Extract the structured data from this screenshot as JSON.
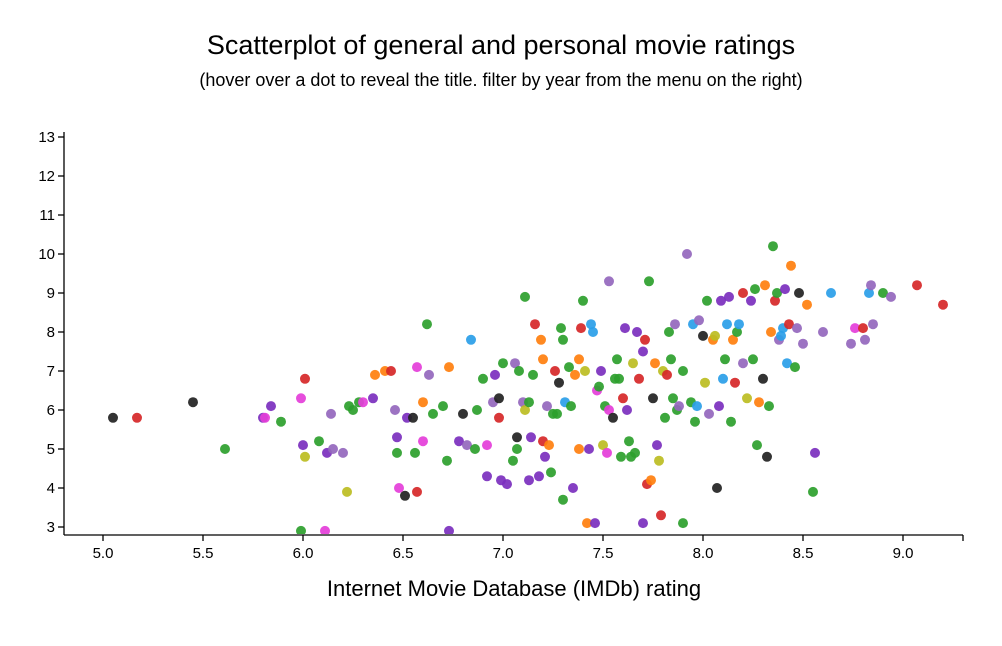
{
  "chart_data": {
    "type": "scatter",
    "title": "Scatterplot of general and personal movie ratings",
    "subtitle": "(hover over a dot to reveal the title. filter by year from the menu on the right)",
    "xlabel": "Internet Movie Database (IMDb) rating",
    "ylabel": "",
    "xlim": [
      4.8,
      9.3
    ],
    "ylim": [
      2.9,
      13.0
    ],
    "xticks": [
      "5.0",
      "5.5",
      "6.0",
      "6.5",
      "7.0",
      "7.5",
      "8.0",
      "8.5",
      "9.0"
    ],
    "yticks": [
      "3",
      "4",
      "5",
      "6",
      "7",
      "8",
      "9",
      "10",
      "11",
      "12",
      "13"
    ],
    "colors": [
      "#2ca02c",
      "#2ca02c",
      "#2ca02c",
      "#7b2fbe",
      "#9467bd",
      "#e43ed9",
      "#2a9ee8",
      "#ff7f0e",
      "#d62728",
      "#222222",
      "#bcbd22",
      "#17becf"
    ],
    "points": [
      [
        5.05,
        5.8,
        9
      ],
      [
        5.17,
        5.8,
        8
      ],
      [
        5.45,
        6.2,
        9
      ],
      [
        5.61,
        5.0,
        0
      ],
      [
        5.8,
        5.8,
        3
      ],
      [
        5.81,
        5.8,
        5
      ],
      [
        5.84,
        6.1,
        3
      ],
      [
        5.89,
        5.7,
        0
      ],
      [
        5.99,
        6.3,
        5
      ],
      [
        6.0,
        5.1,
        3
      ],
      [
        6.01,
        4.8,
        10
      ],
      [
        6.01,
        6.8,
        8
      ],
      [
        6.08,
        5.2,
        0
      ],
      [
        6.12,
        4.9,
        3
      ],
      [
        6.15,
        5.0,
        4
      ],
      [
        6.14,
        5.9,
        4
      ],
      [
        6.2,
        4.9,
        4
      ],
      [
        6.22,
        3.9,
        10
      ],
      [
        6.23,
        6.1,
        0
      ],
      [
        6.25,
        6.0,
        0
      ],
      [
        6.28,
        6.2,
        0
      ],
      [
        6.3,
        6.2,
        5
      ],
      [
        6.35,
        6.3,
        3
      ],
      [
        6.36,
        6.9,
        7
      ],
      [
        6.41,
        7.0,
        7
      ],
      [
        6.44,
        7.0,
        8
      ],
      [
        6.46,
        6.0,
        4
      ],
      [
        6.47,
        4.9,
        0
      ],
      [
        6.47,
        5.3,
        3
      ],
      [
        6.48,
        4.0,
        5
      ],
      [
        6.51,
        3.8,
        9
      ],
      [
        6.52,
        5.8,
        3
      ],
      [
        6.55,
        5.8,
        9
      ],
      [
        6.56,
        4.9,
        0
      ],
      [
        6.57,
        3.9,
        8
      ],
      [
        6.57,
        7.1,
        5
      ],
      [
        6.6,
        6.2,
        7
      ],
      [
        6.6,
        5.2,
        5
      ],
      [
        6.62,
        8.2,
        0
      ],
      [
        6.63,
        6.9,
        4
      ],
      [
        6.65,
        5.9,
        0
      ],
      [
        6.7,
        6.1,
        0
      ],
      [
        6.72,
        4.7,
        0
      ],
      [
        6.73,
        7.1,
        7
      ],
      [
        6.78,
        5.2,
        3
      ],
      [
        6.8,
        5.9,
        9
      ],
      [
        6.82,
        5.1,
        4
      ],
      [
        6.84,
        7.8,
        6
      ],
      [
        6.86,
        5.0,
        0
      ],
      [
        6.87,
        6.0,
        0
      ],
      [
        6.9,
        6.8,
        0
      ],
      [
        6.92,
        4.3,
        3
      ],
      [
        6.92,
        5.1,
        5
      ],
      [
        6.95,
        6.2,
        4
      ],
      [
        6.96,
        6.9,
        3
      ],
      [
        6.98,
        5.8,
        8
      ],
      [
        6.98,
        6.3,
        9
      ],
      [
        6.99,
        4.2,
        3
      ],
      [
        7.0,
        7.2,
        0
      ],
      [
        7.02,
        4.1,
        3
      ],
      [
        7.05,
        4.7,
        0
      ],
      [
        7.06,
        7.2,
        4
      ],
      [
        7.07,
        5.0,
        0
      ],
      [
        7.07,
        5.3,
        9
      ],
      [
        7.08,
        7.0,
        0
      ],
      [
        7.1,
        6.2,
        4
      ],
      [
        7.11,
        8.9,
        0
      ],
      [
        7.11,
        6.0,
        10
      ],
      [
        7.13,
        4.2,
        3
      ],
      [
        7.13,
        6.2,
        0
      ],
      [
        7.14,
        5.3,
        3
      ],
      [
        7.15,
        6.9,
        0
      ],
      [
        7.16,
        8.2,
        8
      ],
      [
        7.18,
        4.3,
        3
      ],
      [
        7.19,
        7.8,
        7
      ],
      [
        7.2,
        7.3,
        7
      ],
      [
        7.2,
        5.2,
        8
      ],
      [
        7.21,
        4.8,
        3
      ],
      [
        7.22,
        6.1,
        4
      ],
      [
        7.23,
        5.1,
        7
      ],
      [
        7.24,
        4.4,
        0
      ],
      [
        7.25,
        5.9,
        0
      ],
      [
        7.26,
        7.0,
        8
      ],
      [
        7.27,
        5.9,
        0
      ],
      [
        7.28,
        6.7,
        9
      ],
      [
        7.29,
        8.1,
        0
      ],
      [
        7.3,
        7.8,
        0
      ],
      [
        7.3,
        3.7,
        0
      ],
      [
        7.31,
        6.2,
        6
      ],
      [
        7.33,
        7.1,
        0
      ],
      [
        7.34,
        6.1,
        0
      ],
      [
        7.35,
        4.0,
        3
      ],
      [
        7.36,
        6.9,
        7
      ],
      [
        7.38,
        5.0,
        7
      ],
      [
        7.38,
        7.3,
        7
      ],
      [
        7.39,
        8.1,
        8
      ],
      [
        7.4,
        8.8,
        0
      ],
      [
        7.41,
        7.0,
        10
      ],
      [
        7.42,
        3.1,
        7
      ],
      [
        7.43,
        5.0,
        3
      ],
      [
        7.44,
        8.2,
        6
      ],
      [
        7.45,
        8.0,
        6
      ],
      [
        7.46,
        3.1,
        3
      ],
      [
        7.47,
        6.5,
        5
      ],
      [
        7.48,
        6.6,
        0
      ],
      [
        7.49,
        7.0,
        3
      ],
      [
        7.5,
        5.1,
        10
      ],
      [
        7.51,
        6.1,
        0
      ],
      [
        7.52,
        4.9,
        5
      ],
      [
        7.53,
        6.0,
        5
      ],
      [
        7.53,
        9.3,
        4
      ],
      [
        7.55,
        5.8,
        9
      ],
      [
        7.56,
        6.8,
        0
      ],
      [
        7.57,
        7.3,
        0
      ],
      [
        7.58,
        6.8,
        0
      ],
      [
        7.59,
        4.8,
        0
      ],
      [
        7.6,
        6.3,
        8
      ],
      [
        7.61,
        8.1,
        3
      ],
      [
        7.62,
        6.0,
        3
      ],
      [
        7.63,
        5.2,
        0
      ],
      [
        7.64,
        4.8,
        0
      ],
      [
        7.65,
        7.2,
        10
      ],
      [
        7.66,
        4.9,
        0
      ],
      [
        7.67,
        8.0,
        3
      ],
      [
        7.68,
        6.8,
        8
      ],
      [
        7.7,
        7.5,
        3
      ],
      [
        7.7,
        3.1,
        3
      ],
      [
        7.71,
        7.8,
        8
      ],
      [
        7.72,
        4.1,
        8
      ],
      [
        7.73,
        9.3,
        0
      ],
      [
        7.74,
        4.2,
        7
      ],
      [
        7.75,
        6.3,
        9
      ],
      [
        7.76,
        7.2,
        7
      ],
      [
        7.77,
        5.1,
        3
      ],
      [
        7.78,
        4.7,
        10
      ],
      [
        7.79,
        3.3,
        8
      ],
      [
        7.8,
        7.0,
        10
      ],
      [
        7.81,
        5.8,
        0
      ],
      [
        7.82,
        6.9,
        8
      ],
      [
        7.83,
        8.0,
        0
      ],
      [
        7.84,
        7.3,
        0
      ],
      [
        7.85,
        6.3,
        0
      ],
      [
        7.86,
        8.2,
        4
      ],
      [
        7.87,
        6.0,
        0
      ],
      [
        7.88,
        6.1,
        4
      ],
      [
        7.9,
        7.0,
        0
      ],
      [
        7.9,
        3.1,
        0
      ],
      [
        7.92,
        10.0,
        4
      ],
      [
        7.94,
        6.2,
        0
      ],
      [
        7.95,
        8.2,
        6
      ],
      [
        7.96,
        5.7,
        0
      ],
      [
        7.97,
        6.1,
        6
      ],
      [
        7.98,
        8.3,
        4
      ],
      [
        8.0,
        7.9,
        9
      ],
      [
        8.01,
        6.7,
        10
      ],
      [
        8.02,
        8.8,
        0
      ],
      [
        8.03,
        5.9,
        4
      ],
      [
        8.05,
        7.8,
        7
      ],
      [
        8.06,
        7.9,
        10
      ],
      [
        8.07,
        4.0,
        9
      ],
      [
        8.08,
        6.1,
        3
      ],
      [
        8.09,
        8.8,
        3
      ],
      [
        8.1,
        6.8,
        6
      ],
      [
        8.11,
        7.3,
        0
      ],
      [
        8.12,
        8.2,
        6
      ],
      [
        8.13,
        8.9,
        3
      ],
      [
        8.14,
        5.7,
        0
      ],
      [
        8.15,
        7.8,
        7
      ],
      [
        8.16,
        6.7,
        8
      ],
      [
        8.17,
        8.0,
        0
      ],
      [
        8.18,
        8.2,
        6
      ],
      [
        8.2,
        7.2,
        4
      ],
      [
        8.2,
        9.0,
        8
      ],
      [
        8.22,
        6.3,
        10
      ],
      [
        8.24,
        8.8,
        3
      ],
      [
        8.25,
        7.3,
        0
      ],
      [
        8.26,
        9.1,
        0
      ],
      [
        8.27,
        5.1,
        0
      ],
      [
        8.28,
        6.2,
        7
      ],
      [
        8.3,
        6.8,
        9
      ],
      [
        8.31,
        9.2,
        7
      ],
      [
        8.32,
        4.8,
        9
      ],
      [
        8.33,
        6.1,
        0
      ],
      [
        8.34,
        8.0,
        7
      ],
      [
        8.35,
        10.2,
        0
      ],
      [
        8.36,
        8.8,
        8
      ],
      [
        8.37,
        9.0,
        0
      ],
      [
        8.38,
        7.8,
        4
      ],
      [
        8.39,
        7.9,
        6
      ],
      [
        8.4,
        8.1,
        6
      ],
      [
        8.41,
        9.1,
        3
      ],
      [
        8.42,
        7.2,
        6
      ],
      [
        8.43,
        8.2,
        8
      ],
      [
        8.44,
        9.7,
        7
      ],
      [
        8.46,
        7.1,
        0
      ],
      [
        8.47,
        8.1,
        4
      ],
      [
        8.48,
        9.0,
        9
      ],
      [
        8.5,
        7.7,
        4
      ],
      [
        8.52,
        8.7,
        7
      ],
      [
        8.55,
        3.9,
        0
      ],
      [
        8.56,
        4.9,
        3
      ],
      [
        8.6,
        8.0,
        4
      ],
      [
        8.64,
        9.0,
        6
      ],
      [
        8.74,
        7.7,
        4
      ],
      [
        8.76,
        8.1,
        5
      ],
      [
        8.8,
        8.1,
        8
      ],
      [
        8.81,
        7.8,
        4
      ],
      [
        8.83,
        9.0,
        6
      ],
      [
        8.84,
        9.2,
        4
      ],
      [
        8.85,
        8.2,
        4
      ],
      [
        8.9,
        9.0,
        0
      ],
      [
        8.94,
        8.9,
        4
      ],
      [
        9.07,
        9.2,
        8
      ],
      [
        9.2,
        8.7,
        8
      ],
      [
        6.11,
        2.9,
        5
      ],
      [
        6.73,
        2.9,
        3
      ],
      [
        5.99,
        2.9,
        0
      ]
    ]
  }
}
